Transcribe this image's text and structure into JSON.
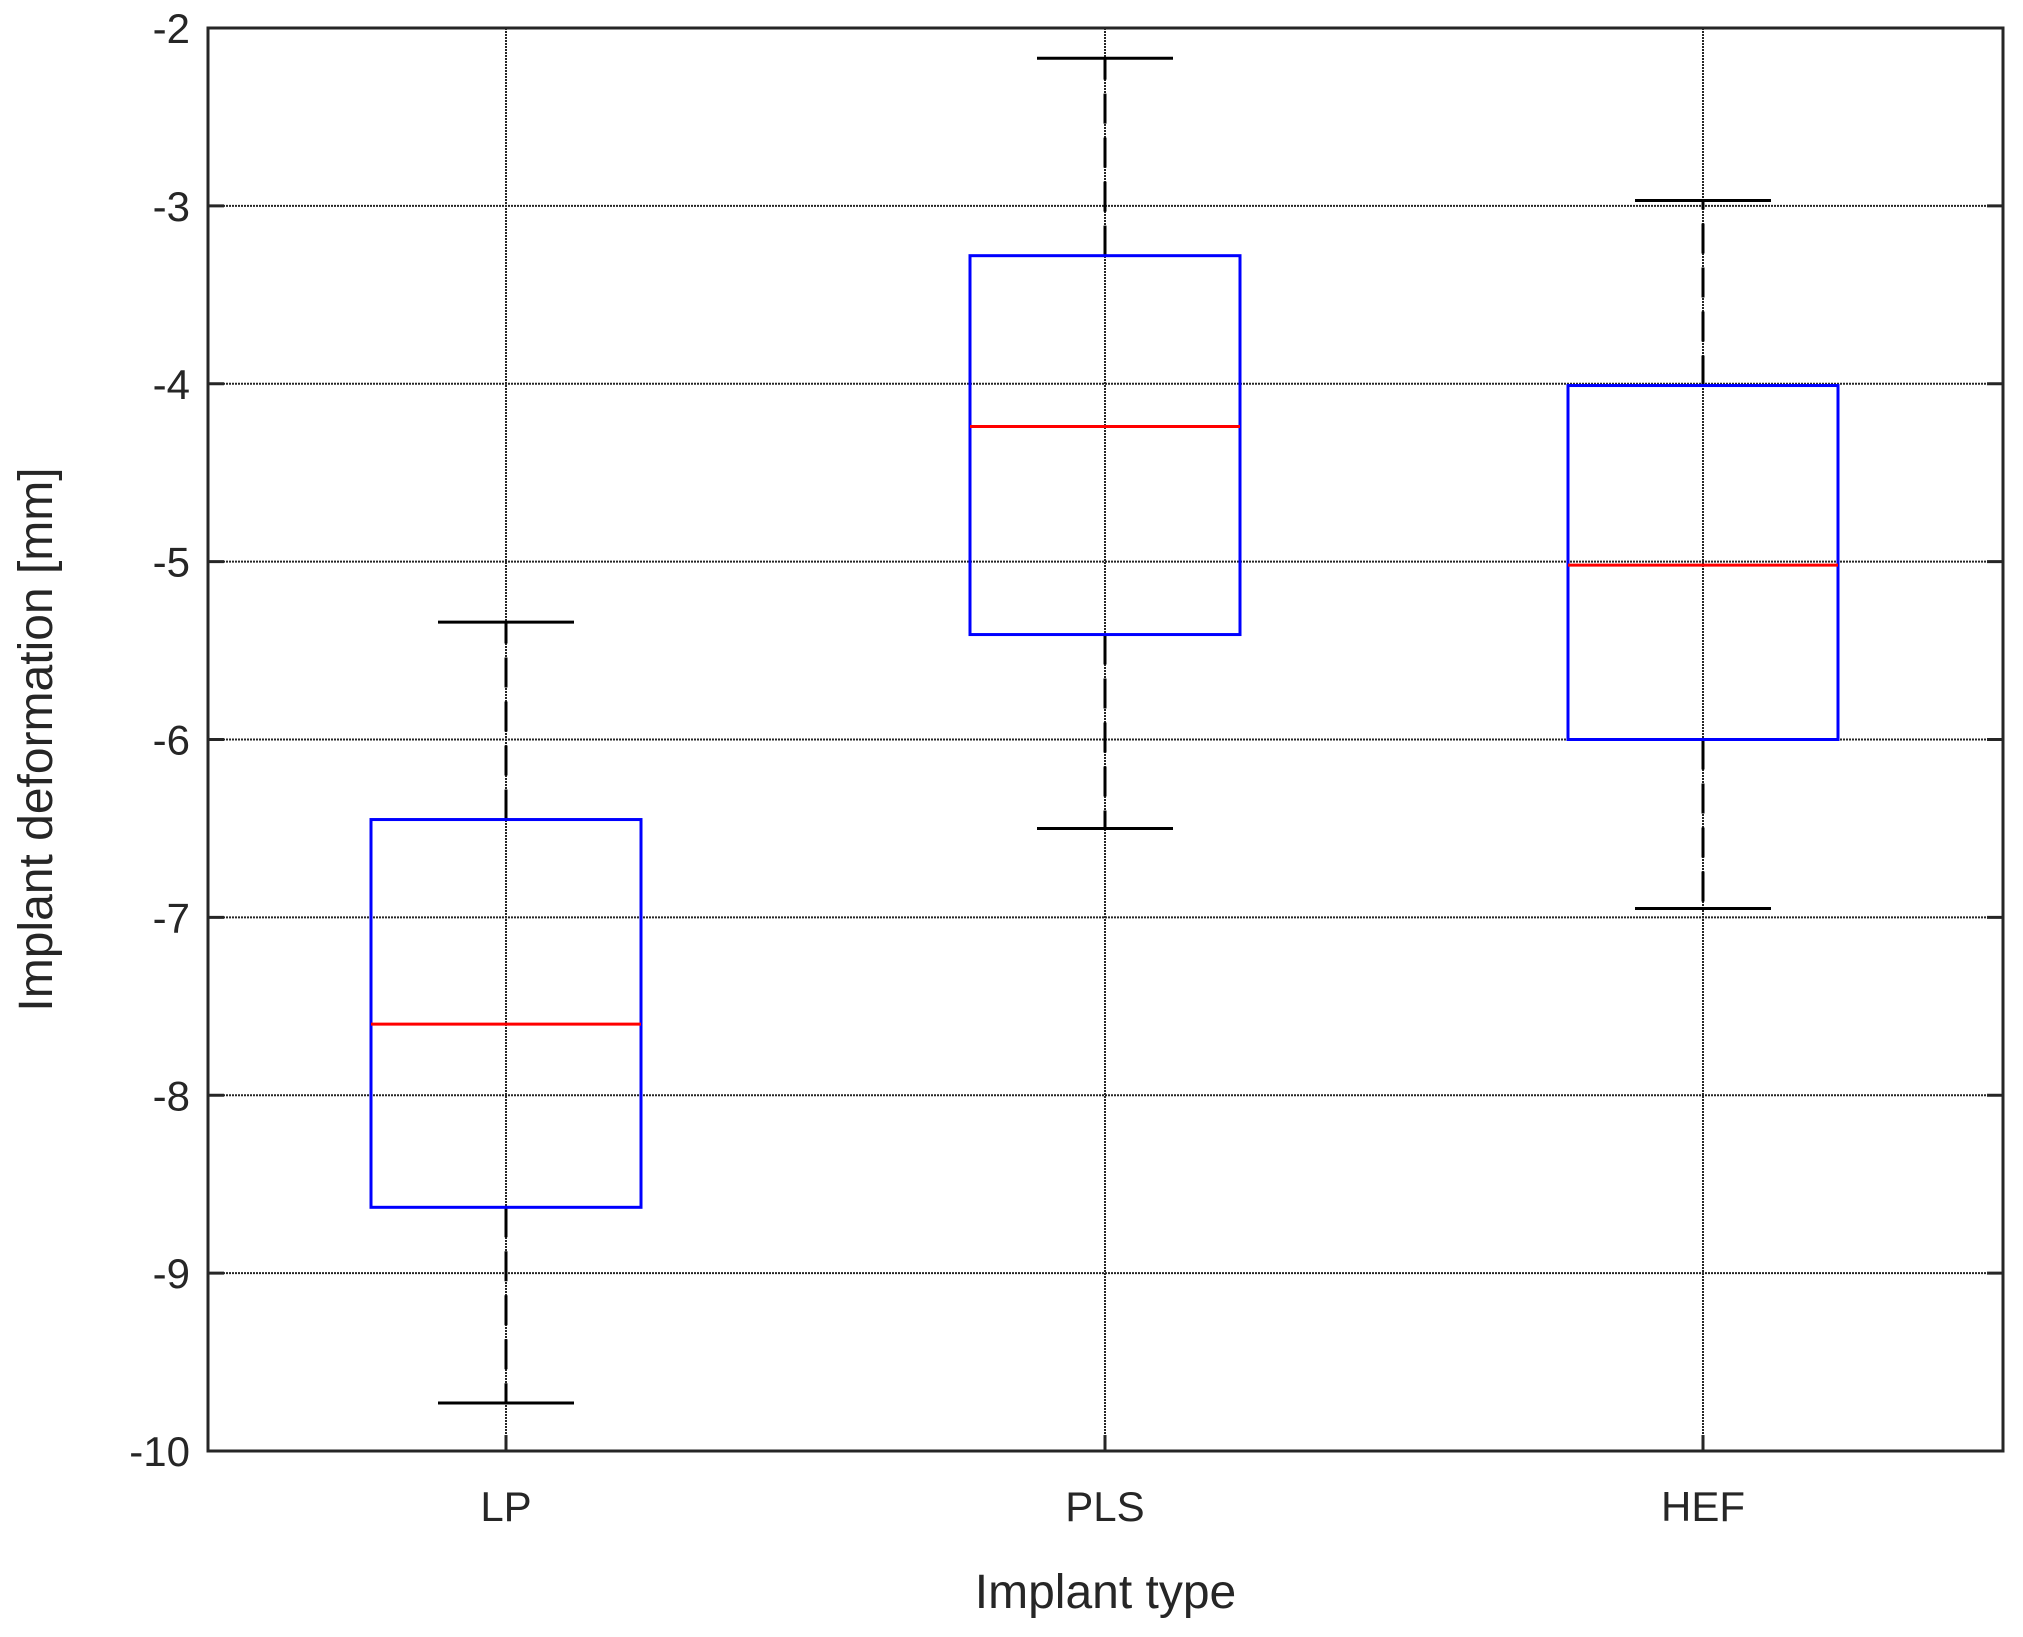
{
  "chart_data": {
    "type": "box",
    "title": "",
    "xlabel": "Implant type",
    "ylabel": "Implant deformation [mm]",
    "ylim": [
      -10,
      -2
    ],
    "yticks": [
      "-10",
      "-9",
      "-8",
      "-7",
      "-6",
      "-5",
      "-4",
      "-3",
      "-2"
    ],
    "grid": true,
    "categories": [
      "LP",
      "PLS",
      "HEF"
    ],
    "boxes": [
      {
        "category": "LP",
        "whisker_low": -9.73,
        "q1": -8.63,
        "median": -7.6,
        "q3": -6.45,
        "whisker_high": -5.34
      },
      {
        "category": "PLS",
        "whisker_low": -6.5,
        "q1": -5.41,
        "median": -4.24,
        "q3": -3.28,
        "whisker_high": -2.17
      },
      {
        "category": "HEF",
        "whisker_low": -6.95,
        "q1": -6.0,
        "median": -5.02,
        "q3": -4.01,
        "whisker_high": -2.97
      }
    ],
    "colors": {
      "box": "#0000ff",
      "median": "#ff0000",
      "whisker": "#000000",
      "grid": "#262626"
    }
  }
}
